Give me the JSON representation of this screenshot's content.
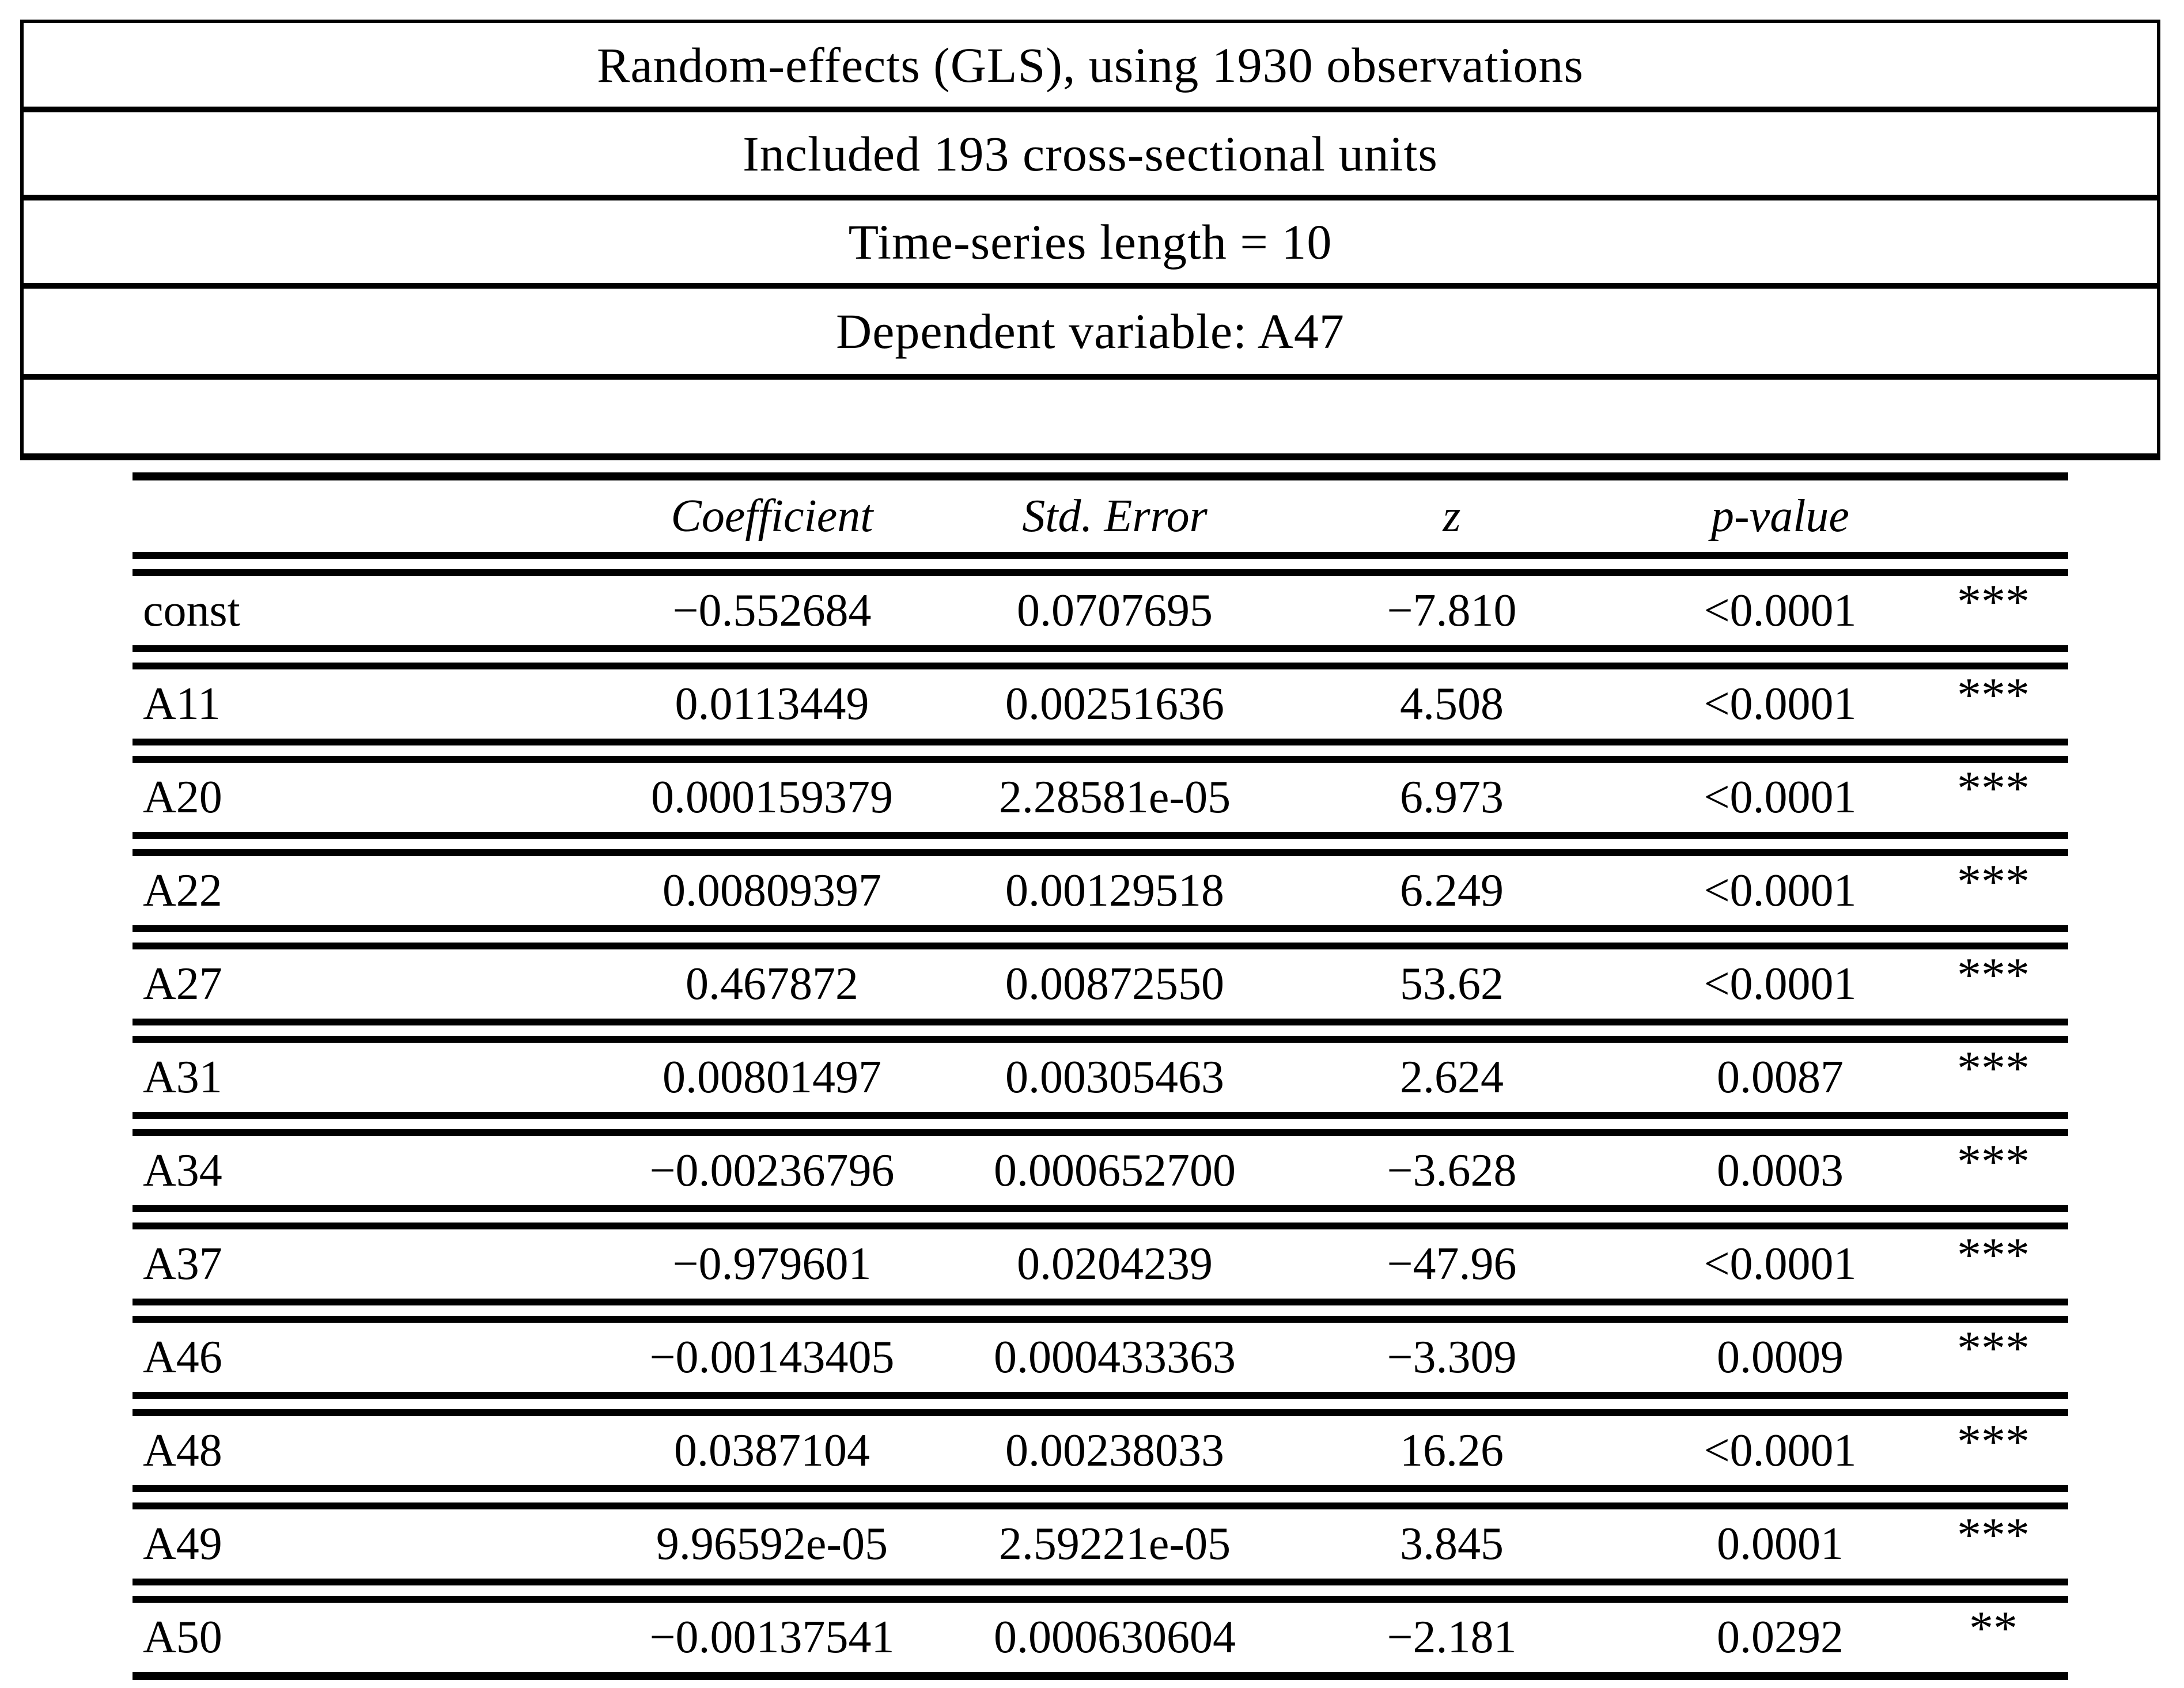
{
  "info_box": {
    "lines": [
      "Random-effects (GLS), using 1930 observations",
      "Included 193 cross-sectional units",
      "Time-series length = 10",
      "Dependent variable: A47"
    ]
  },
  "table": {
    "columns": [
      "",
      "Coefficient",
      "Std. Error",
      "z",
      "p-value",
      ""
    ],
    "rows": [
      {
        "name": "const",
        "coefficient": "−0.552684",
        "std_error": "0.0707695",
        "z": "−7.810",
        "p_value": "<0.0001",
        "stars": "***"
      },
      {
        "name": "A11",
        "coefficient": "0.0113449",
        "std_error": "0.00251636",
        "z": "4.508",
        "p_value": "<0.0001",
        "stars": "***"
      },
      {
        "name": "A20",
        "coefficient": "0.000159379",
        "std_error": "2.28581e-05",
        "z": "6.973",
        "p_value": "<0.0001",
        "stars": "***"
      },
      {
        "name": "A22",
        "coefficient": "0.00809397",
        "std_error": "0.00129518",
        "z": "6.249",
        "p_value": "<0.0001",
        "stars": "***"
      },
      {
        "name": "A27",
        "coefficient": "0.467872",
        "std_error": "0.00872550",
        "z": "53.62",
        "p_value": "<0.0001",
        "stars": "***"
      },
      {
        "name": "A31",
        "coefficient": "0.00801497",
        "std_error": "0.00305463",
        "z": "2.624",
        "p_value": "0.0087",
        "stars": "***"
      },
      {
        "name": "A34",
        "coefficient": "−0.00236796",
        "std_error": "0.000652700",
        "z": "−3.628",
        "p_value": "0.0003",
        "stars": "***"
      },
      {
        "name": "A37",
        "coefficient": "−0.979601",
        "std_error": "0.0204239",
        "z": "−47.96",
        "p_value": "<0.0001",
        "stars": "***"
      },
      {
        "name": "A46",
        "coefficient": "−0.00143405",
        "std_error": "0.000433363",
        "z": "−3.309",
        "p_value": "0.0009",
        "stars": "***"
      },
      {
        "name": "A48",
        "coefficient": "0.0387104",
        "std_error": "0.00238033",
        "z": "16.26",
        "p_value": "<0.0001",
        "stars": "***"
      },
      {
        "name": "A49",
        "coefficient": "9.96592e-05",
        "std_error": "2.59221e-05",
        "z": "3.845",
        "p_value": "0.0001",
        "stars": "***"
      },
      {
        "name": "A50",
        "coefficient": "−0.00137541",
        "std_error": "0.000630604",
        "z": "−2.181",
        "p_value": "0.0292",
        "stars": "**"
      }
    ]
  }
}
